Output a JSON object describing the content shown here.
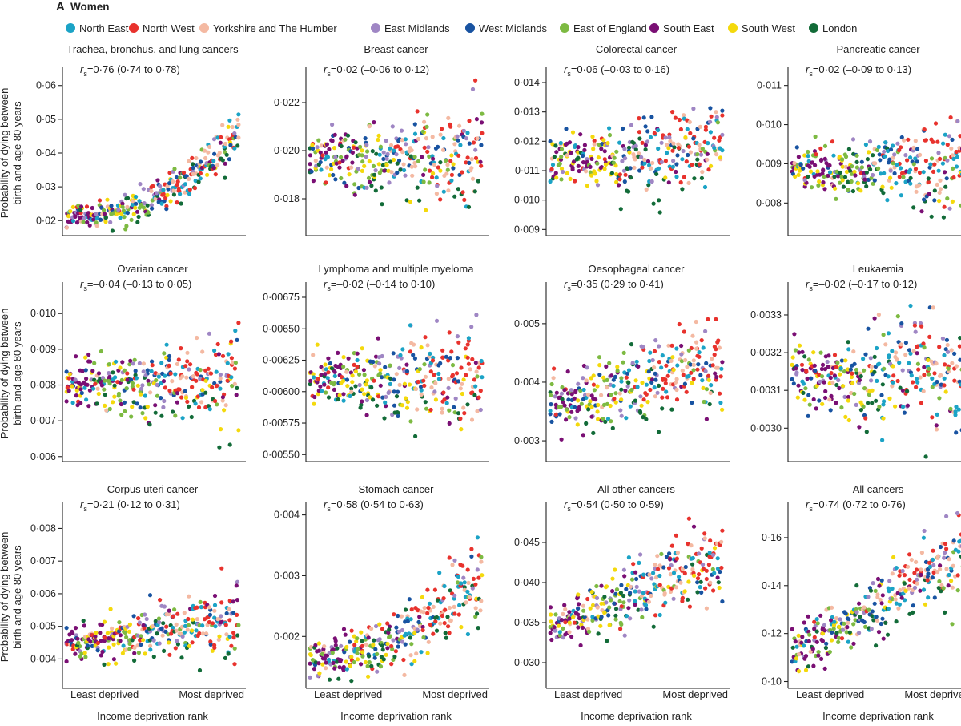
{
  "figure": {
    "letter": "A",
    "title": "Women",
    "x_axis_label": "Income deprivation rank",
    "x_end_left": "Least deprived",
    "x_end_right": "Most deprived",
    "y_axis_label_line1": "Probability of dying between",
    "y_axis_label_line2": "birth and age 80 years"
  },
  "legend": [
    {
      "name": "North East",
      "color": "#1ba3c6"
    },
    {
      "name": "North West",
      "color": "#e8322d"
    },
    {
      "name": "Yorkshire and The Humber",
      "color": "#f4b9a2"
    },
    {
      "name": "East Midlands",
      "color": "#9f86c4"
    },
    {
      "name": "West Midlands",
      "color": "#1853a1"
    },
    {
      "name": "East of England",
      "color": "#7dba42"
    },
    {
      "name": "South East",
      "color": "#7a0f74"
    },
    {
      "name": "South West",
      "color": "#f4d90c"
    },
    {
      "name": "London",
      "color": "#126b38"
    }
  ],
  "chart_data": [
    {
      "type": "scatter",
      "title": "Trachea, bronchus, and lung cancers",
      "stat": {
        "r": "r",
        "sub": "s",
        "text": "=0·76 (0·74 to 0·78)"
      },
      "ylim": [
        0.0165,
        0.0635
      ],
      "yticks": [
        "0·02",
        "0·03",
        "0·04",
        "0·05",
        "0·06"
      ],
      "trend": {
        "type": "exp",
        "start": 0.0205,
        "end": 0.046
      },
      "spread": 0.0028
    },
    {
      "type": "scatter",
      "title": "Breast cancer",
      "stat": {
        "r": "r",
        "sub": "s",
        "text": "=0·02 (–0·06 to 0·12)"
      },
      "ylim": [
        0.0166,
        0.0232
      ],
      "yticks": [
        "0·018",
        "0·020",
        "0·022"
      ],
      "trend": {
        "type": "linear",
        "start": 0.0196,
        "end": 0.0197
      },
      "spread": 0.0009
    },
    {
      "type": "scatter",
      "title": "Colorectal cancer",
      "stat": {
        "r": "r",
        "sub": "s",
        "text": "=0·06 (–0·03 to 0·16)"
      },
      "ylim": [
        0.0089,
        0.0143
      ],
      "yticks": [
        "0·009",
        "0·010",
        "0·011",
        "0·012",
        "0·013",
        "0·014"
      ],
      "trend": {
        "type": "linear",
        "start": 0.01135,
        "end": 0.01165
      },
      "spread": 0.00065
    },
    {
      "type": "scatter",
      "title": "Pancreatic cancer",
      "stat": {
        "r": "r",
        "sub": "s",
        "text": "=0·02 (–0·09 to 0·13)"
      },
      "ylim": [
        0.00725,
        0.0113
      ],
      "yticks": [
        "0·008",
        "0·009",
        "0·010",
        "0·011"
      ],
      "trend": {
        "type": "linear",
        "start": 0.00885,
        "end": 0.00895
      },
      "spread": 0.00045
    },
    {
      "type": "scatter",
      "title": "Ovarian cancer",
      "stat": {
        "r": "r",
        "sub": "s",
        "text": "=–0·04 (–0·13 to 0·05)"
      },
      "ylim": [
        0.00595,
        0.0107
      ],
      "yticks": [
        "0·006",
        "0·007",
        "0·008",
        "0·009",
        "0·010"
      ],
      "trend": {
        "type": "linear",
        "start": 0.0081,
        "end": 0.0079
      },
      "spread": 0.00055
    },
    {
      "type": "scatter",
      "title": "Lymphoma and multiple myeloma",
      "stat": {
        "r": "r",
        "sub": "s",
        "text": "=–0·02 (–0·14 to 0·10)"
      },
      "ylim": [
        0.00547,
        0.00682
      ],
      "yticks": [
        "0·00550",
        "0·00575",
        "0·00600",
        "0·00625",
        "0·00650",
        "0·00675"
      ],
      "trend": {
        "type": "linear",
        "start": 0.00611,
        "end": 0.00608
      },
      "spread": 0.00017
    },
    {
      "type": "scatter",
      "title": "Oesophageal cancer",
      "stat": {
        "r": "r",
        "sub": "s",
        "text": "=0·35 (0·29 to 0·41)"
      },
      "ylim": [
        0.0027,
        0.0056
      ],
      "yticks": [
        "0·003",
        "0·004",
        "0·005"
      ],
      "trend": {
        "type": "linear",
        "start": 0.0036,
        "end": 0.0043
      },
      "spread": 0.00036
    },
    {
      "type": "scatter",
      "title": "Leukaemia",
      "stat": {
        "r": "r",
        "sub": "s",
        "text": "=–0·02 (–0·17 to 0·12)"
      },
      "ylim": [
        0.00292,
        0.00337
      ],
      "yticks": [
        "0·0030",
        "0·0031",
        "0·0032",
        "0·0033"
      ],
      "trend": {
        "type": "linear",
        "start": 0.00314,
        "end": 0.00313
      },
      "spread": 7e-05
    },
    {
      "type": "scatter",
      "title": "Corpus uteri cancer",
      "stat": {
        "r": "r",
        "sub": "s",
        "text": "=0·21 (0·12 to 0·31)"
      },
      "ylim": [
        0.0032,
        0.0086
      ],
      "yticks": [
        "0·004",
        "0·005",
        "0·006",
        "0·007",
        "0·008"
      ],
      "trend": {
        "type": "linear",
        "start": 0.0045,
        "end": 0.0051
      },
      "spread": 0.00042
    },
    {
      "type": "scatter",
      "title": "Stomach cancer",
      "stat": {
        "r": "r",
        "sub": "s",
        "text": "=0·58 (0·54 to 0·63)"
      },
      "ylim": [
        0.0012,
        0.0041
      ],
      "yticks": [
        "0·002",
        "0·003",
        "0·004"
      ],
      "trend": {
        "type": "exp",
        "start": 0.00165,
        "end": 0.0029
      },
      "spread": 0.00028
    },
    {
      "type": "scatter",
      "title": "All other cancers",
      "stat": {
        "r": "r",
        "sub": "s",
        "text": "=0·54 (0·50 to 0·59)"
      },
      "ylim": [
        0.0272,
        0.0492
      ],
      "yticks": [
        "0·030",
        "0·035",
        "0·040",
        "0·045"
      ],
      "trend": {
        "type": "linear",
        "start": 0.0342,
        "end": 0.0425
      },
      "spread": 0.0022
    },
    {
      "type": "scatter",
      "title": "All cancers",
      "stat": {
        "r": "r",
        "sub": "s",
        "text": "=0·74 (0·72 to 0·76)"
      },
      "ylim": [
        0.0985,
        0.172
      ],
      "yticks": [
        "0·10",
        "0·12",
        "0·14",
        "0·16"
      ],
      "trend": {
        "type": "linear",
        "start": 0.111,
        "end": 0.152
      },
      "spread": 0.0075
    }
  ]
}
